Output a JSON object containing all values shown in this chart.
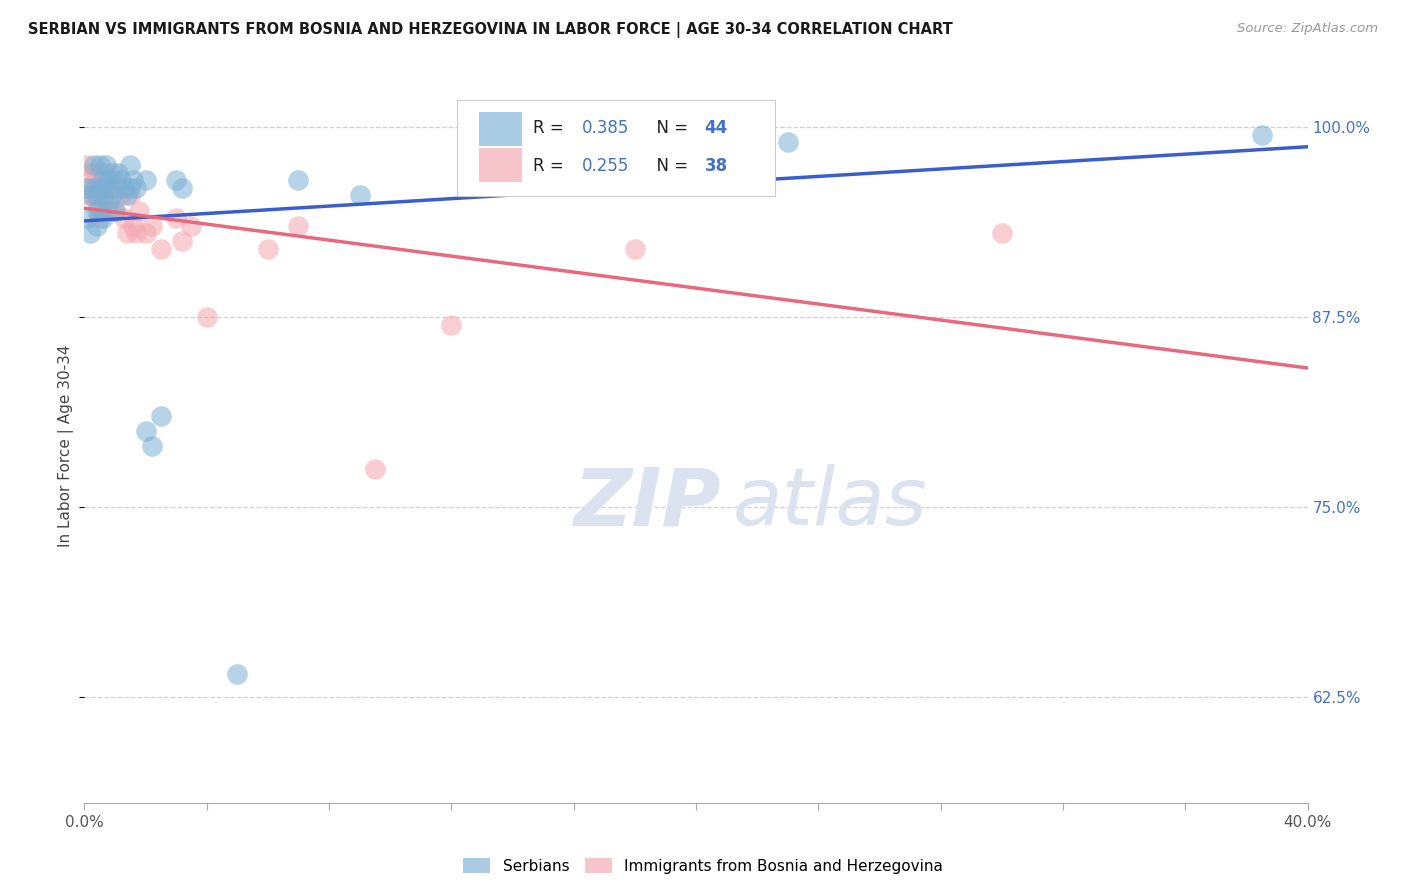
{
  "title": "SERBIAN VS IMMIGRANTS FROM BOSNIA AND HERZEGOVINA IN LABOR FORCE | AGE 30-34 CORRELATION CHART",
  "source": "Source: ZipAtlas.com",
  "ylabel": "In Labor Force | Age 30-34",
  "xlim": [
    0.0,
    0.4
  ],
  "ylim": [
    0.555,
    1.025
  ],
  "blue_R": 0.385,
  "blue_N": 44,
  "pink_R": 0.255,
  "pink_N": 38,
  "blue_color": "#7bafd4",
  "pink_color": "#f4a7b0",
  "blue_line_color": "#3a5fcd",
  "pink_line_color": "#e8697d",
  "blue_scatter_x": [
    0.001,
    0.001,
    0.002,
    0.002,
    0.003,
    0.003,
    0.004,
    0.004,
    0.004,
    0.005,
    0.005,
    0.005,
    0.006,
    0.006,
    0.006,
    0.007,
    0.007,
    0.008,
    0.008,
    0.009,
    0.009,
    0.01,
    0.01,
    0.011,
    0.012,
    0.013,
    0.014,
    0.015,
    0.015,
    0.016,
    0.017,
    0.02,
    0.02,
    0.022,
    0.025,
    0.03,
    0.032,
    0.05,
    0.07,
    0.09,
    0.19,
    0.21,
    0.23,
    0.385
  ],
  "blue_scatter_y": [
    0.96,
    0.94,
    0.955,
    0.93,
    0.975,
    0.96,
    0.955,
    0.945,
    0.935,
    0.975,
    0.96,
    0.945,
    0.965,
    0.955,
    0.94,
    0.975,
    0.96,
    0.965,
    0.95,
    0.97,
    0.955,
    0.96,
    0.945,
    0.97,
    0.965,
    0.96,
    0.955,
    0.975,
    0.96,
    0.965,
    0.96,
    0.965,
    0.8,
    0.79,
    0.81,
    0.965,
    0.96,
    0.64,
    0.965,
    0.955,
    0.975,
    0.985,
    0.99,
    0.995
  ],
  "pink_scatter_x": [
    0.001,
    0.001,
    0.002,
    0.002,
    0.003,
    0.003,
    0.004,
    0.004,
    0.005,
    0.005,
    0.006,
    0.006,
    0.007,
    0.007,
    0.008,
    0.009,
    0.01,
    0.01,
    0.012,
    0.013,
    0.014,
    0.015,
    0.016,
    0.017,
    0.018,
    0.02,
    0.022,
    0.025,
    0.03,
    0.032,
    0.035,
    0.04,
    0.06,
    0.07,
    0.095,
    0.12,
    0.18,
    0.3
  ],
  "pink_scatter_y": [
    0.975,
    0.96,
    0.97,
    0.955,
    0.97,
    0.955,
    0.965,
    0.95,
    0.96,
    0.94,
    0.97,
    0.955,
    0.965,
    0.945,
    0.96,
    0.945,
    0.965,
    0.945,
    0.955,
    0.94,
    0.93,
    0.955,
    0.935,
    0.93,
    0.945,
    0.93,
    0.935,
    0.92,
    0.94,
    0.925,
    0.935,
    0.875,
    0.92,
    0.935,
    0.775,
    0.87,
    0.92,
    0.93
  ],
  "yticks": [
    0.625,
    0.75,
    0.875,
    1.0
  ],
  "ytick_labels": [
    "62.5%",
    "75.0%",
    "87.5%",
    "100.0%"
  ],
  "watermark_zip": "ZIP",
  "watermark_atlas": "atlas",
  "watermark_color": "#dce3f0",
  "grid_color": "#d0d0d8",
  "background_color": "#ffffff",
  "accent_color": "#4472c4"
}
